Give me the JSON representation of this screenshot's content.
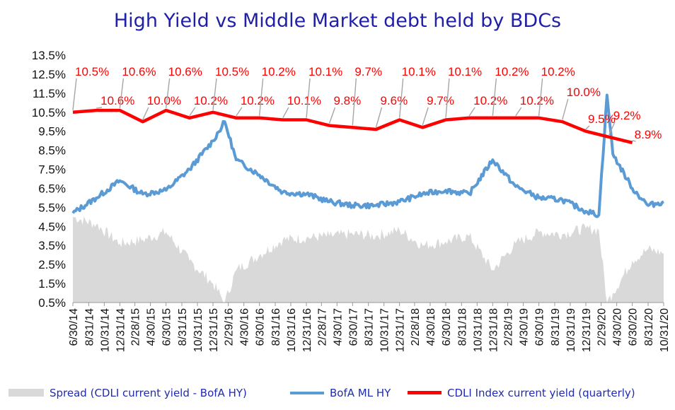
{
  "chart_data": {
    "type": "line",
    "title": "High Yield  vs  Middle Market debt held by BDCs",
    "ylim": [
      0.5,
      13.5
    ],
    "y_ticks": [
      "13.5%",
      "12.5%",
      "11.5%",
      "10.5%",
      "9.5%",
      "8.5%",
      "7.5%",
      "6.5%",
      "5.5%",
      "4.5%",
      "3.5%",
      "2.5%",
      "1.5%",
      "0.5%"
    ],
    "x_ticks": [
      "6/30/14",
      "8/31/14",
      "10/31/14",
      "12/31/14",
      "2/28/15",
      "4/30/15",
      "6/30/15",
      "8/31/15",
      "10/31/15",
      "12/31/15",
      "2/29/16",
      "4/30/16",
      "6/30/16",
      "8/31/16",
      "10/31/16",
      "12/31/16",
      "2/28/17",
      "4/30/17",
      "6/30/17",
      "8/31/17",
      "10/31/17",
      "12/31/17",
      "2/28/18",
      "4/30/18",
      "6/30/18",
      "8/31/18",
      "10/31/18",
      "12/31/18",
      "2/28/19",
      "4/30/19",
      "6/30/19",
      "8/31/19",
      "10/31/19",
      "12/31/19",
      "2/29/20",
      "4/30/20",
      "6/30/20",
      "8/31/20",
      "10/31/20"
    ],
    "grid": false,
    "legend_position": "bottom",
    "series": [
      {
        "name": "CDLI Index current yield (quarterly)",
        "color": "#ff0000",
        "x": [
          "6/30/14",
          "9/30/14",
          "12/31/14",
          "3/31/15",
          "6/30/15",
          "9/30/15",
          "12/31/15",
          "3/31/16",
          "6/30/16",
          "9/30/16",
          "12/31/16",
          "3/31/17",
          "6/30/17",
          "9/30/17",
          "12/31/17",
          "3/31/18",
          "6/30/18",
          "9/30/18",
          "12/31/18",
          "3/31/19",
          "6/30/19",
          "9/30/19",
          "12/31/19",
          "3/31/20",
          "6/30/20"
        ],
        "values": [
          10.5,
          10.6,
          10.6,
          10.0,
          10.6,
          10.2,
          10.5,
          10.2,
          10.2,
          10.1,
          10.1,
          9.8,
          9.7,
          9.6,
          10.1,
          9.7,
          10.1,
          10.2,
          10.2,
          10.2,
          10.2,
          10.0,
          9.5,
          9.2,
          8.9
        ],
        "labels": [
          "10.5%",
          "10.6%",
          "10.6%",
          "10.0%",
          "10.6%",
          "10.2%",
          "10.5%",
          "10.2%",
          "10.2%",
          "10.1%",
          "10.1%",
          "9.8%",
          "9.7%",
          "9.6%",
          "10.1%",
          "9.7%",
          "10.1%",
          "10.2%",
          "10.2%",
          "10.2%",
          "10.2%",
          "10.0%",
          "9.5%",
          "9.2%",
          "8.9%"
        ]
      },
      {
        "name": "BofA ML HY",
        "color": "#5b9bd5",
        "x": [
          "6/30/14",
          "9/30/14",
          "12/31/14",
          "3/31/15",
          "6/30/15",
          "9/30/15",
          "12/31/15",
          "2/15/16",
          "3/31/16",
          "6/30/16",
          "9/30/16",
          "12/31/16",
          "3/31/17",
          "6/30/17",
          "9/30/17",
          "12/31/17",
          "3/31/18",
          "6/30/18",
          "9/30/18",
          "12/31/18",
          "3/31/19",
          "6/30/19",
          "9/30/19",
          "12/31/19",
          "2/20/20",
          "3/23/20",
          "4/15/20",
          "6/30/20",
          "8/31/20",
          "10/31/20"
        ],
        "values": [
          5.2,
          6.0,
          6.9,
          6.2,
          6.4,
          7.5,
          9.0,
          10.0,
          8.0,
          7.2,
          6.3,
          6.2,
          5.8,
          5.6,
          5.6,
          5.8,
          6.2,
          6.4,
          6.2,
          8.0,
          6.6,
          6.0,
          5.9,
          5.3,
          5.1,
          11.4,
          8.3,
          6.5,
          5.6,
          5.8
        ]
      },
      {
        "name": "Spread (CDLI current yield - BofA HY)",
        "color": "#d9d9d9",
        "x": [
          "6/30/14",
          "9/30/14",
          "12/31/14",
          "3/31/15",
          "6/30/15",
          "9/30/15",
          "12/31/15",
          "2/15/16",
          "3/31/16",
          "6/30/16",
          "9/30/16",
          "12/31/16",
          "3/31/17",
          "6/30/17",
          "9/30/17",
          "12/31/17",
          "3/31/18",
          "6/30/18",
          "9/30/18",
          "12/31/18",
          "3/31/19",
          "6/30/19",
          "9/30/19",
          "12/31/19",
          "2/20/20",
          "3/23/20",
          "4/15/20",
          "6/30/20",
          "8/31/20",
          "10/31/20"
        ],
        "values": [
          5.0,
          4.6,
          3.6,
          3.8,
          4.2,
          2.7,
          1.5,
          0.5,
          2.2,
          3.0,
          3.8,
          3.9,
          4.0,
          4.1,
          4.0,
          4.3,
          3.5,
          3.7,
          4.0,
          2.2,
          3.6,
          4.2,
          4.1,
          4.4,
          4.3,
          0.5,
          1.0,
          2.7,
          3.3,
          3.1
        ]
      }
    ]
  }
}
